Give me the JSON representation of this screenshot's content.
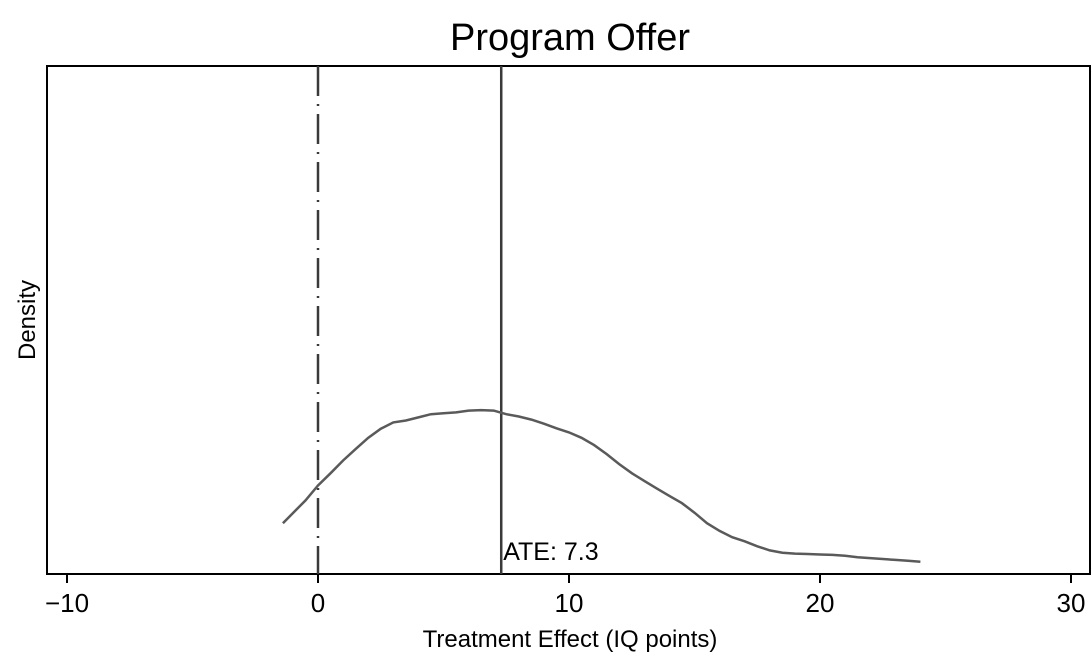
{
  "chart_data": {
    "type": "line",
    "title": "Program Offer",
    "xlabel": "Treatment Effect (IQ points)",
    "ylabel": "Density",
    "xlim": [
      -11,
      31
    ],
    "ylim": [
      0,
      1
    ],
    "xticks": [
      -10,
      0,
      10,
      20,
      30
    ],
    "xtick_labels": [
      "−10",
      "0",
      "10",
      "20",
      "30"
    ],
    "grid": false,
    "series": [
      {
        "x": [
          -1.4,
          -0.5,
          0,
          0.5,
          1.0,
          1.5,
          2.0,
          2.5,
          3.0,
          3.5,
          4.0,
          4.5,
          5.0,
          5.5,
          6.0,
          6.5,
          7.0,
          7.5,
          8.0,
          8.5,
          9.0,
          9.5,
          10.0,
          10.5,
          11.0,
          11.5,
          12.0,
          12.5,
          13.0,
          13.5,
          14.0,
          14.5,
          15.0,
          15.5,
          16.0,
          16.5,
          17.0,
          17.5,
          18.0,
          18.5,
          19.0,
          19.5,
          20.0,
          20.5,
          21.0,
          21.5,
          22.0,
          22.5,
          23.0,
          23.5,
          24.0
        ],
        "y": [
          0.112,
          0.162,
          0.195,
          0.222,
          0.25,
          0.275,
          0.3,
          0.32,
          0.334,
          0.338,
          0.345,
          0.352,
          0.354,
          0.356,
          0.36,
          0.361,
          0.36,
          0.352,
          0.347,
          0.34,
          0.331,
          0.321,
          0.312,
          0.3,
          0.284,
          0.264,
          0.242,
          0.222,
          0.205,
          0.188,
          0.172,
          0.156,
          0.135,
          0.112,
          0.095,
          0.081,
          0.072,
          0.061,
          0.052,
          0.047,
          0.045,
          0.044,
          0.043,
          0.042,
          0.04,
          0.037,
          0.035,
          0.033,
          0.031,
          0.029,
          0.027
        ]
      }
    ],
    "vlines": [
      {
        "x": 0,
        "style": "dash-dot"
      },
      {
        "x": 7.3,
        "style": "solid"
      }
    ],
    "annotations": [
      {
        "text": "ATE: 7.3",
        "x": 7.3
      }
    ],
    "colors": {
      "curve": "#5a5a5a",
      "vline": "#3a3a3a",
      "axis": "#000000"
    }
  }
}
